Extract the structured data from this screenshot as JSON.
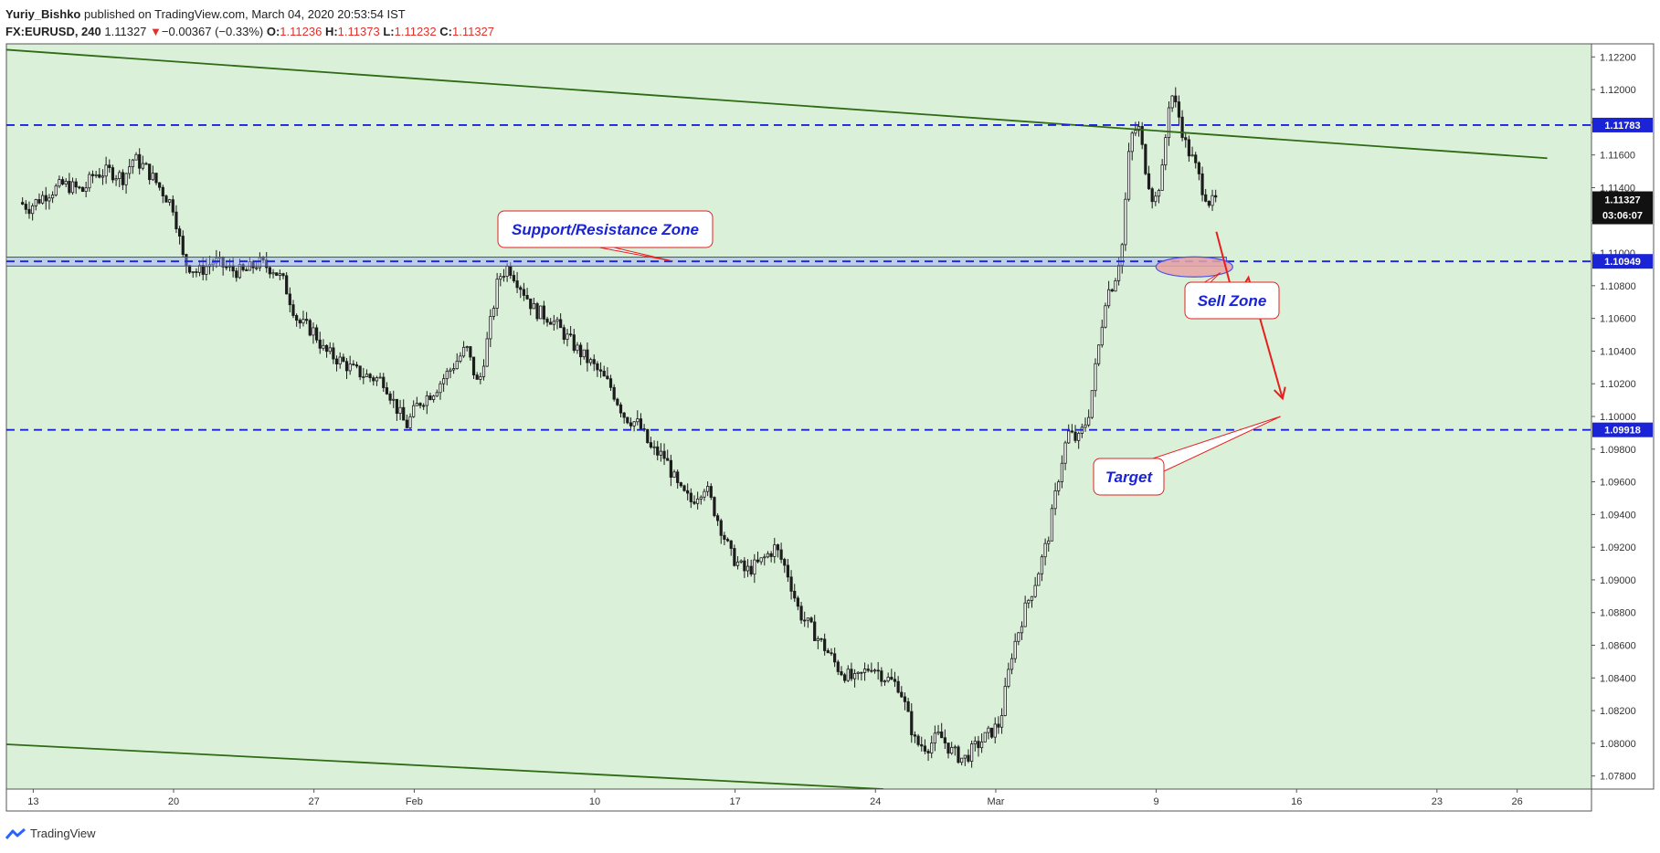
{
  "header": {
    "author": "Yuriy_Bishko",
    "published": "published on TradingView.com, March 04, 2020 20:53:54 IST",
    "symbol": "FX:EURUSD, 240",
    "last": "1.11327",
    "change": "−0.00367 (−0.33%)",
    "o_label": "O:",
    "o": "1.11236",
    "h_label": "H:",
    "h": "1.11373",
    "l_label": "L:",
    "l": "1.11232",
    "c_label": "C:",
    "c": "1.11327"
  },
  "footer": {
    "brand": "TradingView"
  },
  "chart_data": {
    "type": "candlestick",
    "symbol": "FX:EURUSD",
    "interval": "240",
    "ylim": [
      1.0772,
      1.1228
    ],
    "y_ticks": [
      "1.12200",
      "1.12000",
      "1.11800",
      "1.11600",
      "1.11400",
      "1.11200",
      "1.11000",
      "1.10800",
      "1.10600",
      "1.10400",
      "1.10200",
      "1.10000",
      "1.09800",
      "1.09600",
      "1.09400",
      "1.09200",
      "1.09000",
      "1.08800",
      "1.08600",
      "1.08400",
      "1.08200",
      "1.08000",
      "1.07800"
    ],
    "x_ticks": [
      {
        "label": "13",
        "day": 13
      },
      {
        "label": "20",
        "day": 20
      },
      {
        "label": "27",
        "day": 27
      },
      {
        "label": "Feb",
        "day": 32
      },
      {
        "label": "10",
        "day": 41
      },
      {
        "label": "17",
        "day": 48
      },
      {
        "label": "24",
        "day": 55
      },
      {
        "label": "Mar",
        "day": 61
      },
      {
        "label": "9",
        "day": 69
      },
      {
        "label": "16",
        "day": 76
      },
      {
        "label": "23",
        "day": 83
      },
      {
        "label": "26",
        "day": 87
      }
    ],
    "x_unit": "day number from Jan 1 2020 (Jan 13 = 13, Feb = 32, Mar = 61)",
    "close_path": [
      [
        12.3,
        1.1131
      ],
      [
        12.8,
        1.1128
      ],
      [
        13.5,
        1.1135
      ],
      [
        14.5,
        1.1142
      ],
      [
        15.5,
        1.1138
      ],
      [
        16,
        1.1148
      ],
      [
        16.8,
        1.115
      ],
      [
        17.5,
        1.1146
      ],
      [
        18,
        1.1158
      ],
      [
        18.6,
        1.1152
      ],
      [
        19.2,
        1.1142
      ],
      [
        20,
        1.1128
      ],
      [
        20.5,
        1.1095
      ],
      [
        21.2,
        1.1088
      ],
      [
        22,
        1.1095
      ],
      [
        22.8,
        1.109
      ],
      [
        23.5,
        1.1088
      ],
      [
        24.2,
        1.1094
      ],
      [
        25,
        1.109
      ],
      [
        25.5,
        1.1082
      ],
      [
        26.2,
        1.1058
      ],
      [
        27,
        1.1052
      ],
      [
        27.5,
        1.104
      ],
      [
        28.2,
        1.1035
      ],
      [
        29,
        1.1028
      ],
      [
        29.8,
        1.1024
      ],
      [
        30.5,
        1.1022
      ],
      [
        31,
        1.1008
      ],
      [
        31.6,
        1.0994
      ],
      [
        32.2,
        1.1008
      ],
      [
        33,
        1.1016
      ],
      [
        34,
        1.1032
      ],
      [
        34.6,
        1.1042
      ],
      [
        35.2,
        1.1018
      ],
      [
        35.7,
        1.105
      ],
      [
        36.2,
        1.1085
      ],
      [
        36.7,
        1.1092
      ],
      [
        37.3,
        1.108
      ],
      [
        38,
        1.1065
      ],
      [
        38.8,
        1.106
      ],
      [
        39.5,
        1.105
      ],
      [
        40.2,
        1.104
      ],
      [
        41,
        1.103
      ],
      [
        41.8,
        1.1018
      ],
      [
        42.5,
        1.1
      ],
      [
        43.2,
        1.0995
      ],
      [
        43.8,
        1.098
      ],
      [
        44.5,
        1.0975
      ],
      [
        45.2,
        1.0955
      ],
      [
        45.8,
        1.0948
      ],
      [
        46.5,
        1.0958
      ],
      [
        47.2,
        1.0935
      ],
      [
        47.8,
        1.0915
      ],
      [
        48.5,
        1.0905
      ],
      [
        49.2,
        1.091
      ],
      [
        50,
        1.092
      ],
      [
        50.6,
        1.0905
      ],
      [
        51.2,
        1.088
      ],
      [
        51.8,
        1.087
      ],
      [
        52.5,
        1.0858
      ],
      [
        53.2,
        1.0845
      ],
      [
        54,
        1.0838
      ],
      [
        54.8,
        1.0848
      ],
      [
        55.5,
        1.084
      ],
      [
        56.2,
        1.0835
      ],
      [
        57,
        1.08
      ],
      [
        57.6,
        1.0798
      ],
      [
        58.2,
        1.0805
      ],
      [
        58.8,
        1.0795
      ],
      [
        59.4,
        1.079
      ],
      [
        60,
        1.0798
      ],
      [
        60.6,
        1.0805
      ],
      [
        61.2,
        1.0812
      ],
      [
        61.8,
        1.0855
      ],
      [
        62.4,
        1.088
      ],
      [
        63,
        1.09
      ],
      [
        63.6,
        1.0925
      ],
      [
        64.2,
        1.0968
      ],
      [
        64.6,
        1.099
      ],
      [
        65.1,
        1.0985
      ],
      [
        65.6,
        1.1
      ],
      [
        66.1,
        1.104
      ],
      [
        66.5,
        1.1075
      ],
      [
        66.9,
        1.1082
      ],
      [
        67.3,
        1.1105
      ],
      [
        67.7,
        1.117
      ],
      [
        68.1,
        1.1178
      ],
      [
        68.5,
        1.115
      ],
      [
        68.9,
        1.113
      ],
      [
        69.3,
        1.115
      ],
      [
        69.7,
        1.12
      ],
      [
        70.1,
        1.1185
      ],
      [
        70.5,
        1.1165
      ],
      [
        70.9,
        1.1155
      ],
      [
        71.3,
        1.114
      ],
      [
        71.7,
        1.113
      ],
      [
        72.1,
        1.1133
      ]
    ],
    "h_lines": [
      {
        "value": 1.11783,
        "label": "1.11783",
        "style": "dashed",
        "color": "#1a24d6"
      },
      {
        "value": 1.10949,
        "label": "1.10949",
        "style": "dashed",
        "color": "#1a24d6"
      },
      {
        "value": 1.09918,
        "label": "1.09918",
        "style": "dashed",
        "color": "#1a24d6"
      }
    ],
    "last_price": {
      "value": 1.11327,
      "label": "1.11327",
      "countdown": "03:06:07"
    },
    "channel_lines": [
      {
        "from": [
          7.5,
          1.1228
        ],
        "to": [
          88.5,
          1.1158
        ],
        "color": "#2e6b14"
      },
      {
        "from": [
          7.5,
          1.0802
        ],
        "to": [
          55.4,
          1.0772
        ],
        "color": "#2e6b14"
      }
    ],
    "zone": {
      "from_day": 7.5,
      "to_day": 72.5,
      "low": 1.1092,
      "high": 1.10975
    },
    "ellipse": {
      "center_day": 70.9,
      "center_price": 1.10915,
      "label": "Sell Zone"
    },
    "forecast_path": [
      [
        72,
        1.1113
      ],
      [
        72.9,
        1.1071
      ],
      [
        73.6,
        1.1085
      ],
      [
        75.3,
        1.1011
      ]
    ],
    "annotations": [
      {
        "text": "Support/Resistance Zone",
        "anchor_day": 44.9,
        "anchor_price": 1.1095
      },
      {
        "text": "Sell Zone",
        "anchor_day": 72.2,
        "anchor_price": 1.1088
      },
      {
        "text": "Target",
        "anchor_day": 75.2,
        "anchor_price": 1.1
      }
    ],
    "colors": {
      "background": "#daf0d8",
      "candles": "#1c1c1c",
      "channel": "#2e6b14",
      "levels": "#1a24d6",
      "forecast": "#e61f1f",
      "callout_border": "#e61f1f",
      "callout_text": "#1a24d6"
    }
  }
}
